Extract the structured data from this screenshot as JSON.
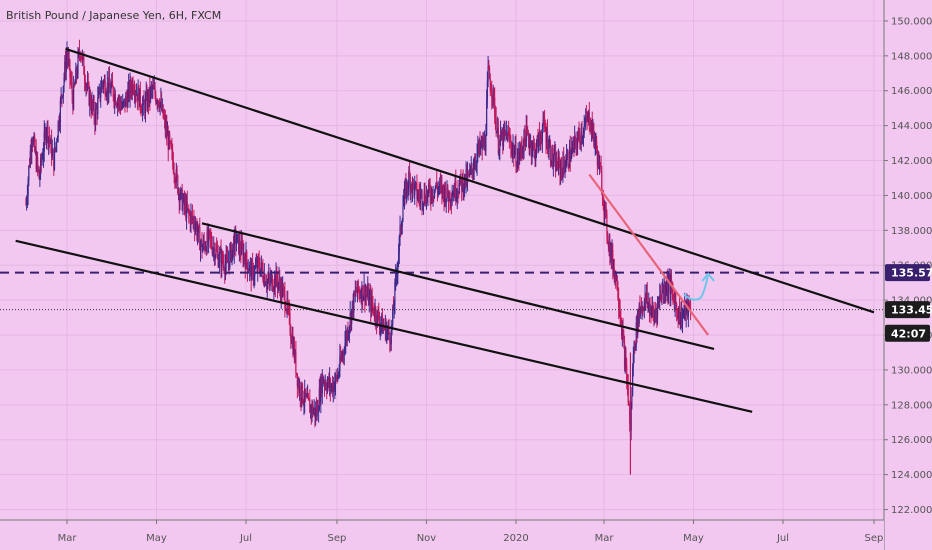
{
  "chart_data": {
    "type": "candlestick",
    "title": "British Pound / Japanese Yen, 6H, FXCM",
    "y_ticks": [
      122,
      124,
      126,
      128,
      130,
      132,
      134,
      136,
      138,
      140,
      142,
      144,
      146,
      148,
      150
    ],
    "y_tick_labels": [
      "122.000",
      "124.000",
      "126.000",
      "128.000",
      "130.000",
      "132.000",
      "134.000",
      "136.000",
      "138.000",
      "140.000",
      "142.000",
      "144.000",
      "146.000",
      "148.000",
      "150.000"
    ],
    "x_labels": [
      "Mar",
      "May",
      "Jul",
      "Sep",
      "Nov",
      "2020",
      "Mar",
      "May",
      "Jul",
      "Sep"
    ],
    "ylim": [
      121.4,
      151.2
    ],
    "price_path": [
      [
        "2019-02-01",
        139.5
      ],
      [
        "2019-02-05",
        143.5
      ],
      [
        "2019-02-10",
        141.0
      ],
      [
        "2019-02-15",
        144.0
      ],
      [
        "2019-02-20",
        142.0
      ],
      [
        "2019-02-25",
        145.5
      ],
      [
        "2019-03-01",
        148.2
      ],
      [
        "2019-03-05",
        145.5
      ],
      [
        "2019-03-10",
        148.5
      ],
      [
        "2019-03-15",
        146.0
      ],
      [
        "2019-03-20",
        144.5
      ],
      [
        "2019-03-25",
        146.5
      ],
      [
        "2019-04-01",
        146.0
      ],
      [
        "2019-04-08",
        145.0
      ],
      [
        "2019-04-15",
        146.5
      ],
      [
        "2019-04-22",
        145.0
      ],
      [
        "2019-04-28",
        146.0
      ],
      [
        "2019-05-03",
        145.5
      ],
      [
        "2019-05-08",
        143.5
      ],
      [
        "2019-05-12",
        142.0
      ],
      [
        "2019-05-17",
        140.0
      ],
      [
        "2019-05-22",
        139.0
      ],
      [
        "2019-05-27",
        138.5
      ],
      [
        "2019-06-01",
        137.0
      ],
      [
        "2019-06-06",
        137.5
      ],
      [
        "2019-06-12",
        136.5
      ],
      [
        "2019-06-18",
        136.0
      ],
      [
        "2019-06-24",
        137.5
      ],
      [
        "2019-06-30",
        136.5
      ],
      [
        "2019-07-05",
        135.5
      ],
      [
        "2019-07-10",
        136.0
      ],
      [
        "2019-07-16",
        135.0
      ],
      [
        "2019-07-22",
        135.2
      ],
      [
        "2019-07-28",
        134.0
      ],
      [
        "2019-08-02",
        131.5
      ],
      [
        "2019-08-06",
        129.0
      ],
      [
        "2019-08-12",
        128.0
      ],
      [
        "2019-08-18",
        127.5
      ],
      [
        "2019-08-22",
        129.5
      ],
      [
        "2019-08-28",
        129.0
      ],
      [
        "2019-09-01",
        129.5
      ],
      [
        "2019-09-05",
        131.0
      ],
      [
        "2019-09-10",
        133.0
      ],
      [
        "2019-09-14",
        134.5
      ],
      [
        "2019-09-20",
        134.5
      ],
      [
        "2019-09-26",
        133.5
      ],
      [
        "2019-10-02",
        132.5
      ],
      [
        "2019-10-08",
        132.0
      ],
      [
        "2019-10-12",
        136.0
      ],
      [
        "2019-10-16",
        139.5
      ],
      [
        "2019-10-20",
        141.0
      ],
      [
        "2019-10-26",
        140.0
      ],
      [
        "2019-11-01",
        140.0
      ],
      [
        "2019-11-08",
        140.5
      ],
      [
        "2019-11-16",
        140.0
      ],
      [
        "2019-11-22",
        140.5
      ],
      [
        "2019-11-30",
        141.0
      ],
      [
        "2019-12-06",
        142.5
      ],
      [
        "2019-12-11",
        143.0
      ],
      [
        "2019-12-13",
        147.0
      ],
      [
        "2019-12-16",
        146.0
      ],
      [
        "2019-12-20",
        143.0
      ],
      [
        "2019-12-26",
        143.5
      ],
      [
        "2020-01-02",
        142.0
      ],
      [
        "2020-01-08",
        143.5
      ],
      [
        "2020-01-14",
        142.5
      ],
      [
        "2020-01-20",
        144.0
      ],
      [
        "2020-01-26",
        142.0
      ],
      [
        "2020-02-01",
        141.5
      ],
      [
        "2020-02-08",
        142.5
      ],
      [
        "2020-02-14",
        143.5
      ],
      [
        "2020-02-20",
        144.5
      ],
      [
        "2020-02-24",
        143.0
      ],
      [
        "2020-02-28",
        141.0
      ],
      [
        "2020-03-03",
        138.0
      ],
      [
        "2020-03-06",
        136.5
      ],
      [
        "2020-03-10",
        135.0
      ],
      [
        "2020-03-13",
        132.5
      ],
      [
        "2020-03-17",
        129.0
      ],
      [
        "2020-03-19",
        126.5
      ],
      [
        "2020-03-21",
        131.0
      ],
      [
        "2020-03-25",
        133.5
      ],
      [
        "2020-03-30",
        134.0
      ],
      [
        "2020-04-04",
        133.0
      ],
      [
        "2020-04-09",
        134.5
      ],
      [
        "2020-04-14",
        135.0
      ],
      [
        "2020-04-18",
        134.0
      ],
      [
        "2020-04-22",
        133.0
      ],
      [
        "2020-04-26",
        133.5
      ],
      [
        "2020-04-29",
        133.454
      ]
    ],
    "horizontal_lines": [
      {
        "price": 135.577,
        "style": "dashed",
        "color": "#3a1f6e"
      },
      {
        "price": 133.454,
        "style": "dotted",
        "color": "#333333"
      }
    ],
    "trendlines": [
      {
        "from": [
          "2019-02-28",
          148.4
        ],
        "to": [
          "2020-09-01",
          133.3
        ],
        "color": "#111111"
      },
      {
        "from": [
          "2019-06-01",
          138.4
        ],
        "to": [
          "2020-05-15",
          131.2
        ],
        "color": "#111111"
      },
      {
        "from": [
          "2019-01-25",
          137.4
        ],
        "to": [
          "2020-06-10",
          127.6
        ],
        "color": "#111111"
      },
      {
        "from": [
          "2020-02-20",
          141.2
        ],
        "to": [
          "2020-05-11",
          132.0
        ],
        "color": "#e8647a"
      }
    ],
    "arrow": {
      "from": [
        "2020-04-30",
        134.1
      ],
      "to": [
        "2020-05-11",
        135.5
      ],
      "color": "#6ec6ea"
    },
    "price_tags": [
      {
        "label": "135.577",
        "price": 135.577,
        "bg": "#3a1f6e"
      },
      {
        "label": "133.454",
        "price": 133.454,
        "bg": "#1c1c1c"
      },
      {
        "label": "42:07",
        "price": 132.1,
        "bg": "#1c1c1c"
      }
    ]
  }
}
